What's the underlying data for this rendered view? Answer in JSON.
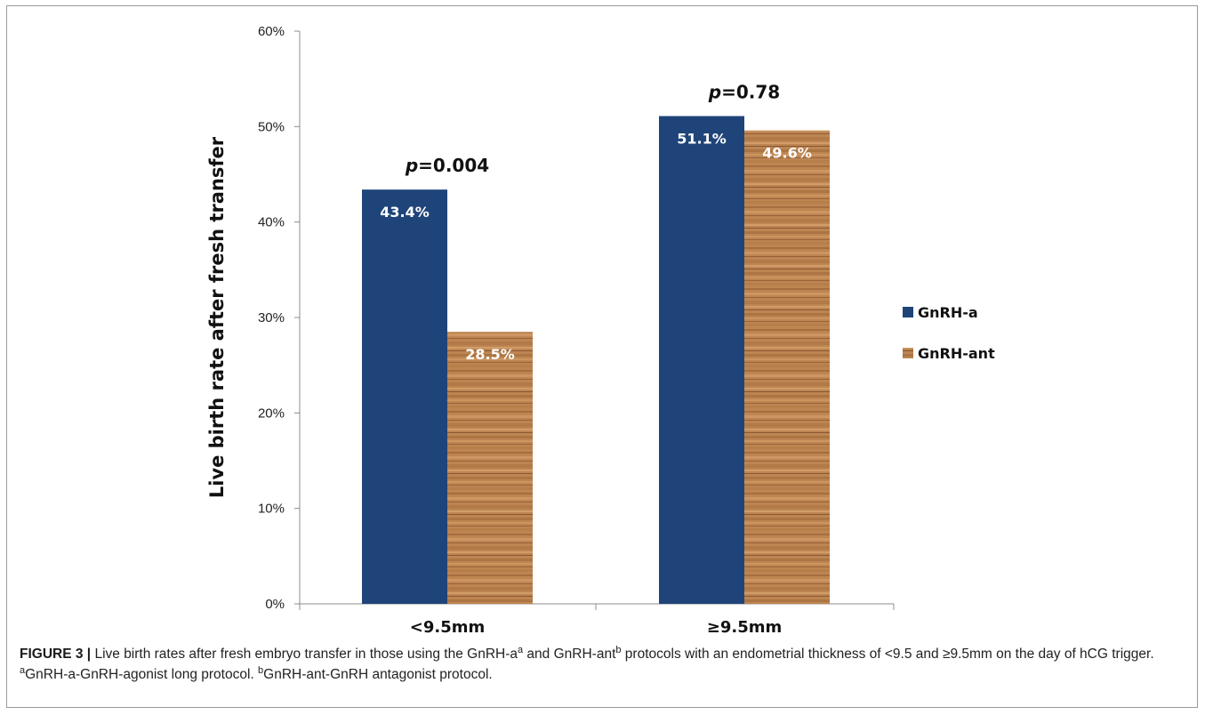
{
  "chart_data": {
    "type": "bar",
    "categories": [
      "<9.5mm",
      "≥9.5mm"
    ],
    "series": [
      {
        "name": "GnRH-a",
        "values": [
          43.4,
          51.1
        ],
        "labels": [
          "43.4%",
          "51.1%"
        ],
        "color": "#1f4479",
        "texture": "solid"
      },
      {
        "name": "GnRH-ant",
        "values": [
          28.5,
          49.6
        ],
        "labels": [
          "28.5%",
          "49.6%"
        ],
        "color": "#b97a45",
        "texture": "wood"
      }
    ],
    "annotations": [
      {
        "prefix": "p",
        "text": "=0.004"
      },
      {
        "prefix": "p",
        "text": "=0.78"
      }
    ],
    "ylabel": "Live birth rate after fresh transfer",
    "xlabel": "",
    "ylim": [
      0,
      60
    ],
    "yticks": [
      "0%",
      "10%",
      "20%",
      "30%",
      "40%",
      "50%",
      "60%"
    ],
    "grid": false,
    "legend_position": "right"
  },
  "caption": {
    "label": "FIGURE 3 |",
    "part1": " Live birth rates after fresh embryo transfer in those using the GnRH-a",
    "sup1": "a",
    "part2": " and GnRH-ant",
    "sup2": "b",
    "part3": " protocols with an endometrial thickness of <9.5 and ≥9.5mm on the day of hCG trigger. ",
    "sup3": "a",
    "part4": "GnRH-a-GnRH-agonist long protocol. ",
    "sup4": "b",
    "part5": "GnRH-ant-GnRH antagonist protocol."
  }
}
